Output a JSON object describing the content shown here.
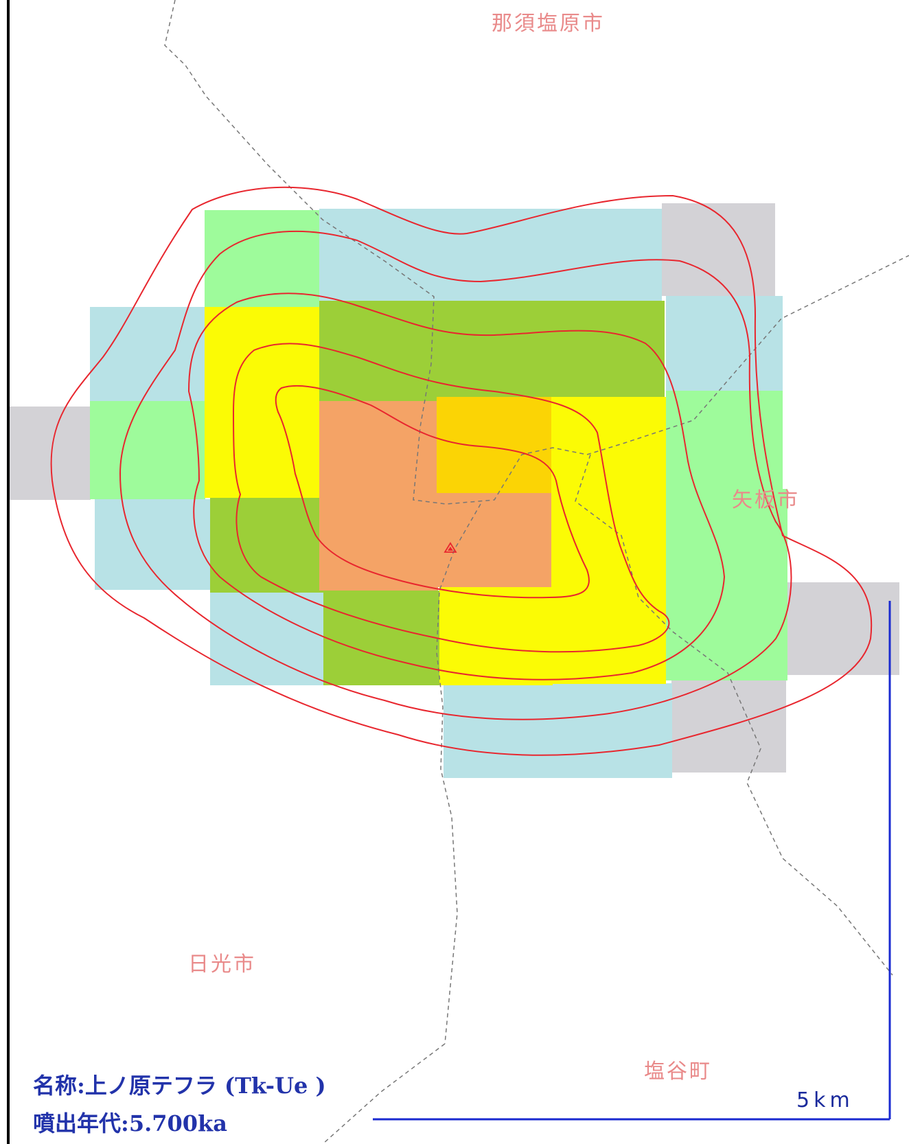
{
  "map": {
    "places": {
      "nasushiobara": "那須塩原市",
      "yaita": "矢板市",
      "nikko": "日光市",
      "shioya": "塩谷町"
    },
    "vent_symbol": "triangle-vent-icon",
    "scale_bar": {
      "label": "5km"
    },
    "info": {
      "name_line": "名称:上ノ原テフラ (Tk-Ue )",
      "age_line": "噴出年代:5.700ka"
    },
    "colors": {
      "class_grey": "#d3d2d6",
      "class_lightblue": "#b8e2e6",
      "class_lightgreen": "#9efb9b",
      "class_olive": "#9ccf38",
      "class_yellow": "#fbfb05",
      "class_orange": "#f4a366",
      "class_gold": "#fbd405",
      "isopach_line": "#e8262e",
      "boundary_line": "#777777",
      "place_label": "#e98a8a",
      "info_text": "#2233aa",
      "scale_bar": "#1a2ad0"
    }
  }
}
